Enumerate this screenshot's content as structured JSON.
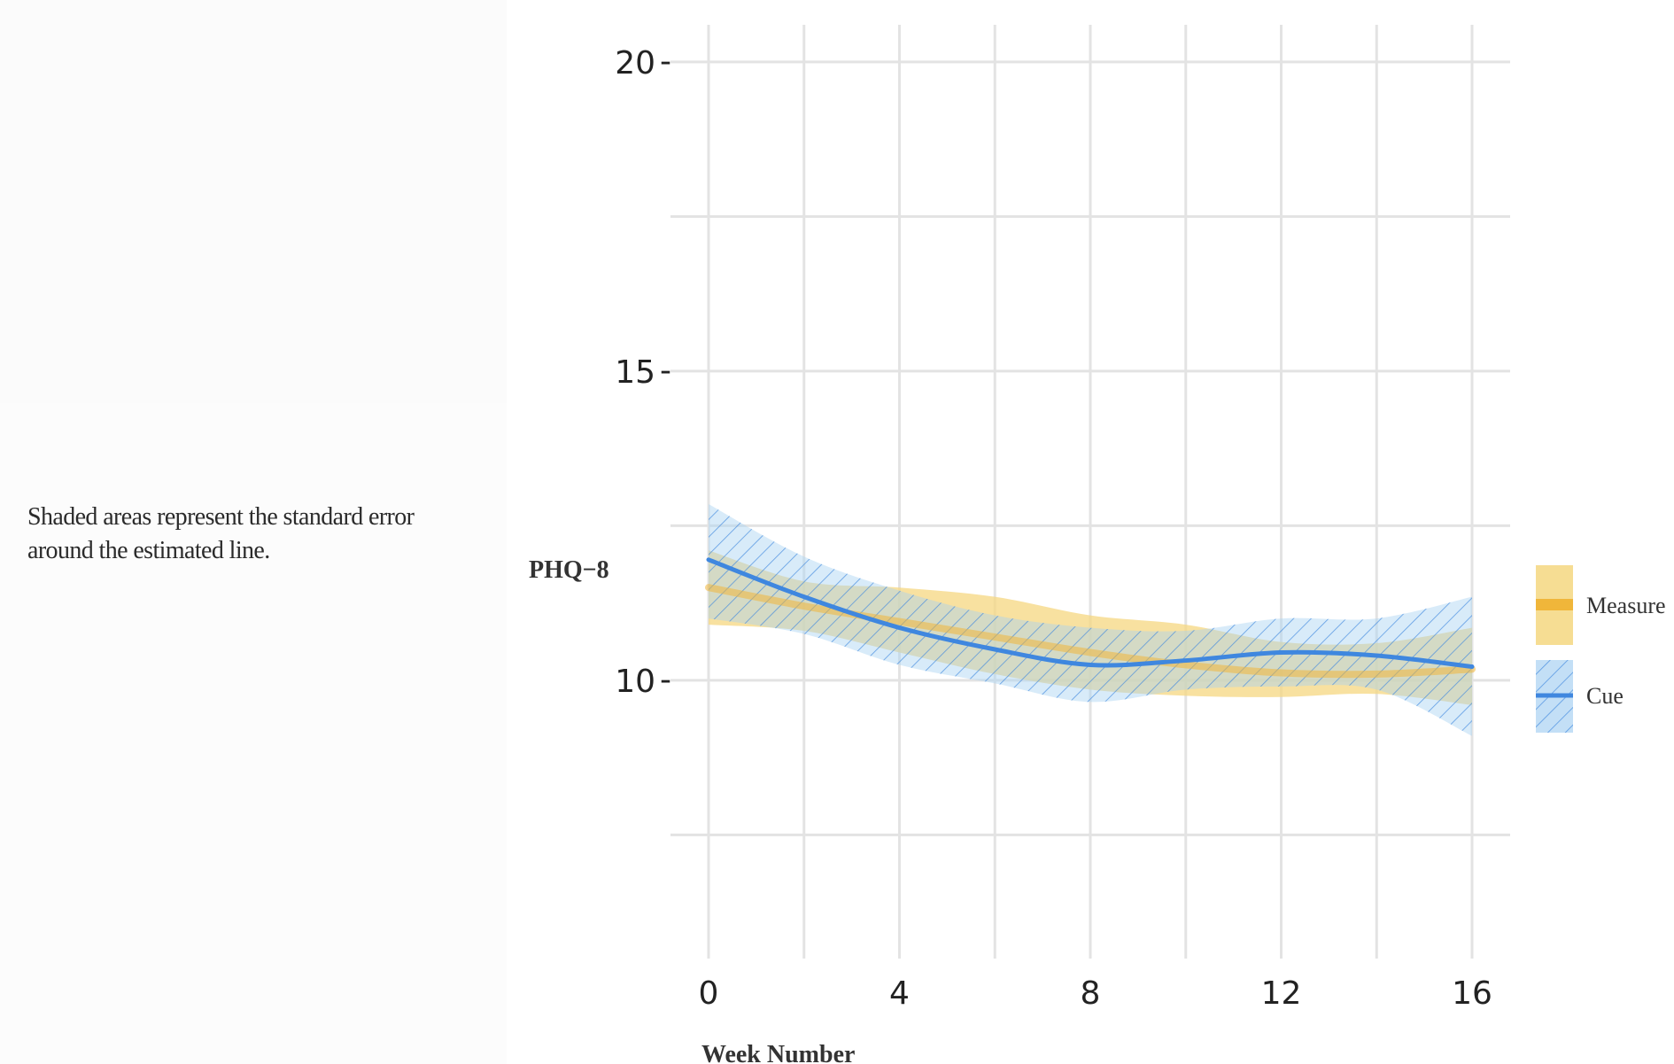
{
  "note": {
    "line1": "Shaded areas represent the standard error",
    "line2": "around the estimated line."
  },
  "chart_data": {
    "type": "line",
    "xlabel": "Week Number",
    "ylabel": "PHQ−8",
    "xlim": [
      0,
      16
    ],
    "ylim": [
      5.5,
      20.6
    ],
    "x_ticks": [
      0,
      4,
      8,
      12,
      16
    ],
    "x_tick_labels": [
      "0",
      "4",
      "8",
      "12",
      "16"
    ],
    "y_ticks": [
      10,
      15,
      20
    ],
    "y_tick_labels": [
      "10",
      "15",
      "20"
    ],
    "y_tick_suffix": "-",
    "x_minor_gridlines": [
      2,
      6,
      10,
      14
    ],
    "y_minor_gridlines": [
      7.5,
      12.5,
      17.5
    ],
    "grid": true,
    "legend_position": "right",
    "series": [
      {
        "name": "Measure",
        "color": "#f0b63a",
        "band_color": "#f5d780",
        "x": [
          0,
          2,
          4,
          6,
          8,
          10,
          12,
          14,
          16
        ],
        "y": [
          11.5,
          11.2,
          10.95,
          10.7,
          10.45,
          10.25,
          10.12,
          10.1,
          10.18
        ],
        "lower": [
          10.9,
          10.8,
          10.45,
          10.1,
          9.85,
          9.75,
          9.73,
          9.78,
          9.6
        ],
        "upper": [
          12.1,
          11.6,
          11.5,
          11.35,
          11.05,
          10.9,
          10.62,
          10.6,
          10.85
        ]
      },
      {
        "name": "Cue",
        "color": "#3f87df",
        "band_color": "#a9d2f2",
        "x": [
          0,
          2,
          4,
          6,
          8,
          10,
          12,
          14,
          16
        ],
        "y": [
          11.95,
          11.35,
          10.85,
          10.5,
          10.25,
          10.32,
          10.45,
          10.4,
          10.22
        ],
        "lower": [
          11.0,
          10.75,
          10.25,
          9.95,
          9.65,
          9.85,
          9.9,
          9.85,
          9.1
        ],
        "upper": [
          12.85,
          12.0,
          11.45,
          11.05,
          10.85,
          10.8,
          11.0,
          11.0,
          11.35
        ]
      }
    ]
  }
}
